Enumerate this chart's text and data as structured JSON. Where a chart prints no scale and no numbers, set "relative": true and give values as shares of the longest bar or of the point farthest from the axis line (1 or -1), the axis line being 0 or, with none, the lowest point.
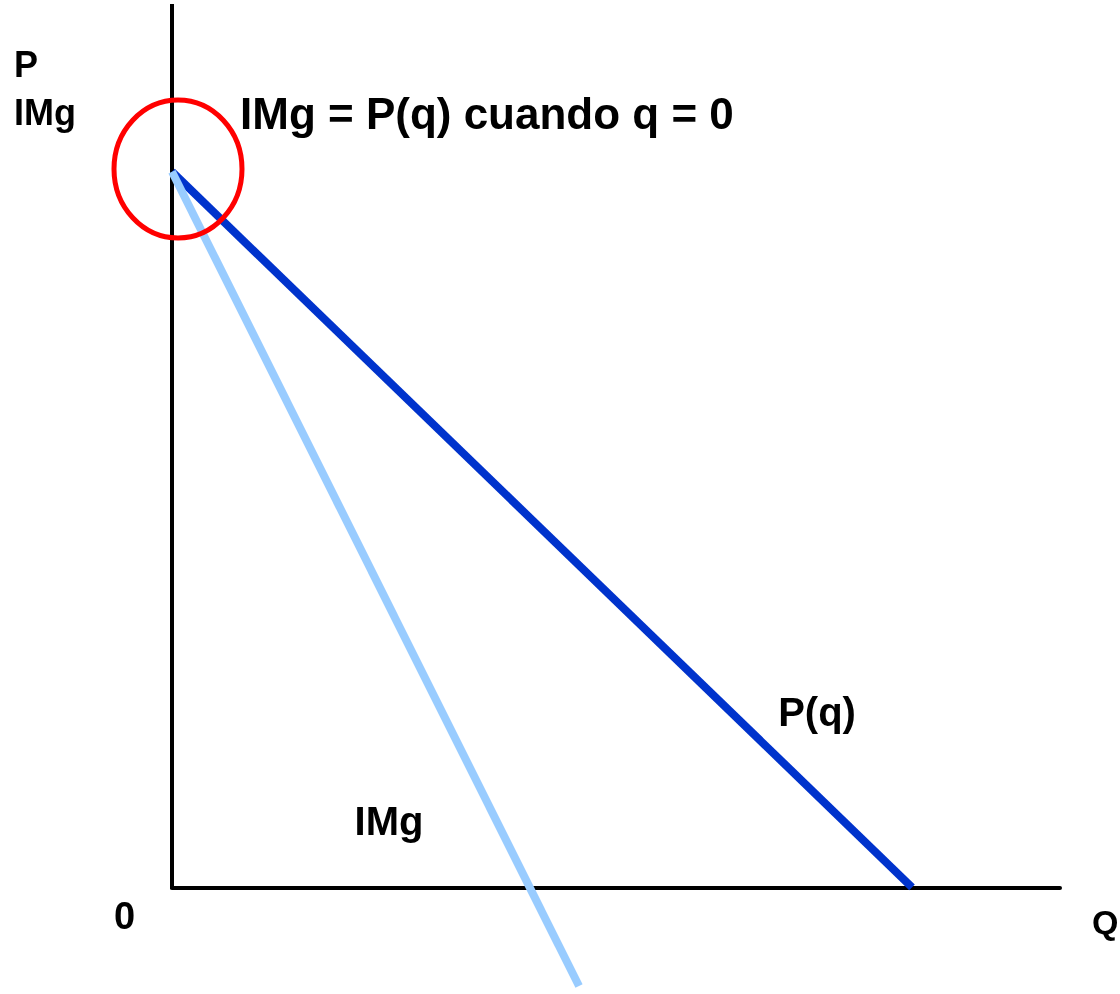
{
  "chart_data": {
    "type": "line",
    "relative": true,
    "ylabel": "P\nIMg",
    "xlabel": "Q",
    "categories": [
      null,
      null,
      null,
      null,
      null,
      null,
      null,
      null,
      null,
      null,
      null,
      null,
      null,
      null,
      null,
      null,
      null,
      null,
      null,
      null,
      null,
      null,
      null,
      null,
      null
    ],
    "series": [
      {
        "name": "P(q)",
        "color": "#0033cc",
        "values": [
          1,
          null,
          null,
          null,
          null,
          null,
          null,
          null,
          null,
          null,
          null,
          null,
          null,
          null,
          null,
          null,
          null,
          null,
          null,
          null,
          0,
          null,
          null,
          null,
          null
        ]
      },
      {
        "name": "IMg",
        "color": "#99ccff",
        "values": [
          1,
          null,
          null,
          null,
          null,
          null,
          null,
          null,
          null,
          null,
          null,
          -0.138,
          null,
          null,
          null,
          null,
          null,
          null,
          null,
          null,
          null,
          null,
          null,
          null,
          null
        ]
      }
    ],
    "annotations": [
      "IMg = P(q) cuando q = 0",
      "0"
    ],
    "grid": false,
    "legend": false,
    "marker": "none",
    "line_style": "solid"
  }
}
